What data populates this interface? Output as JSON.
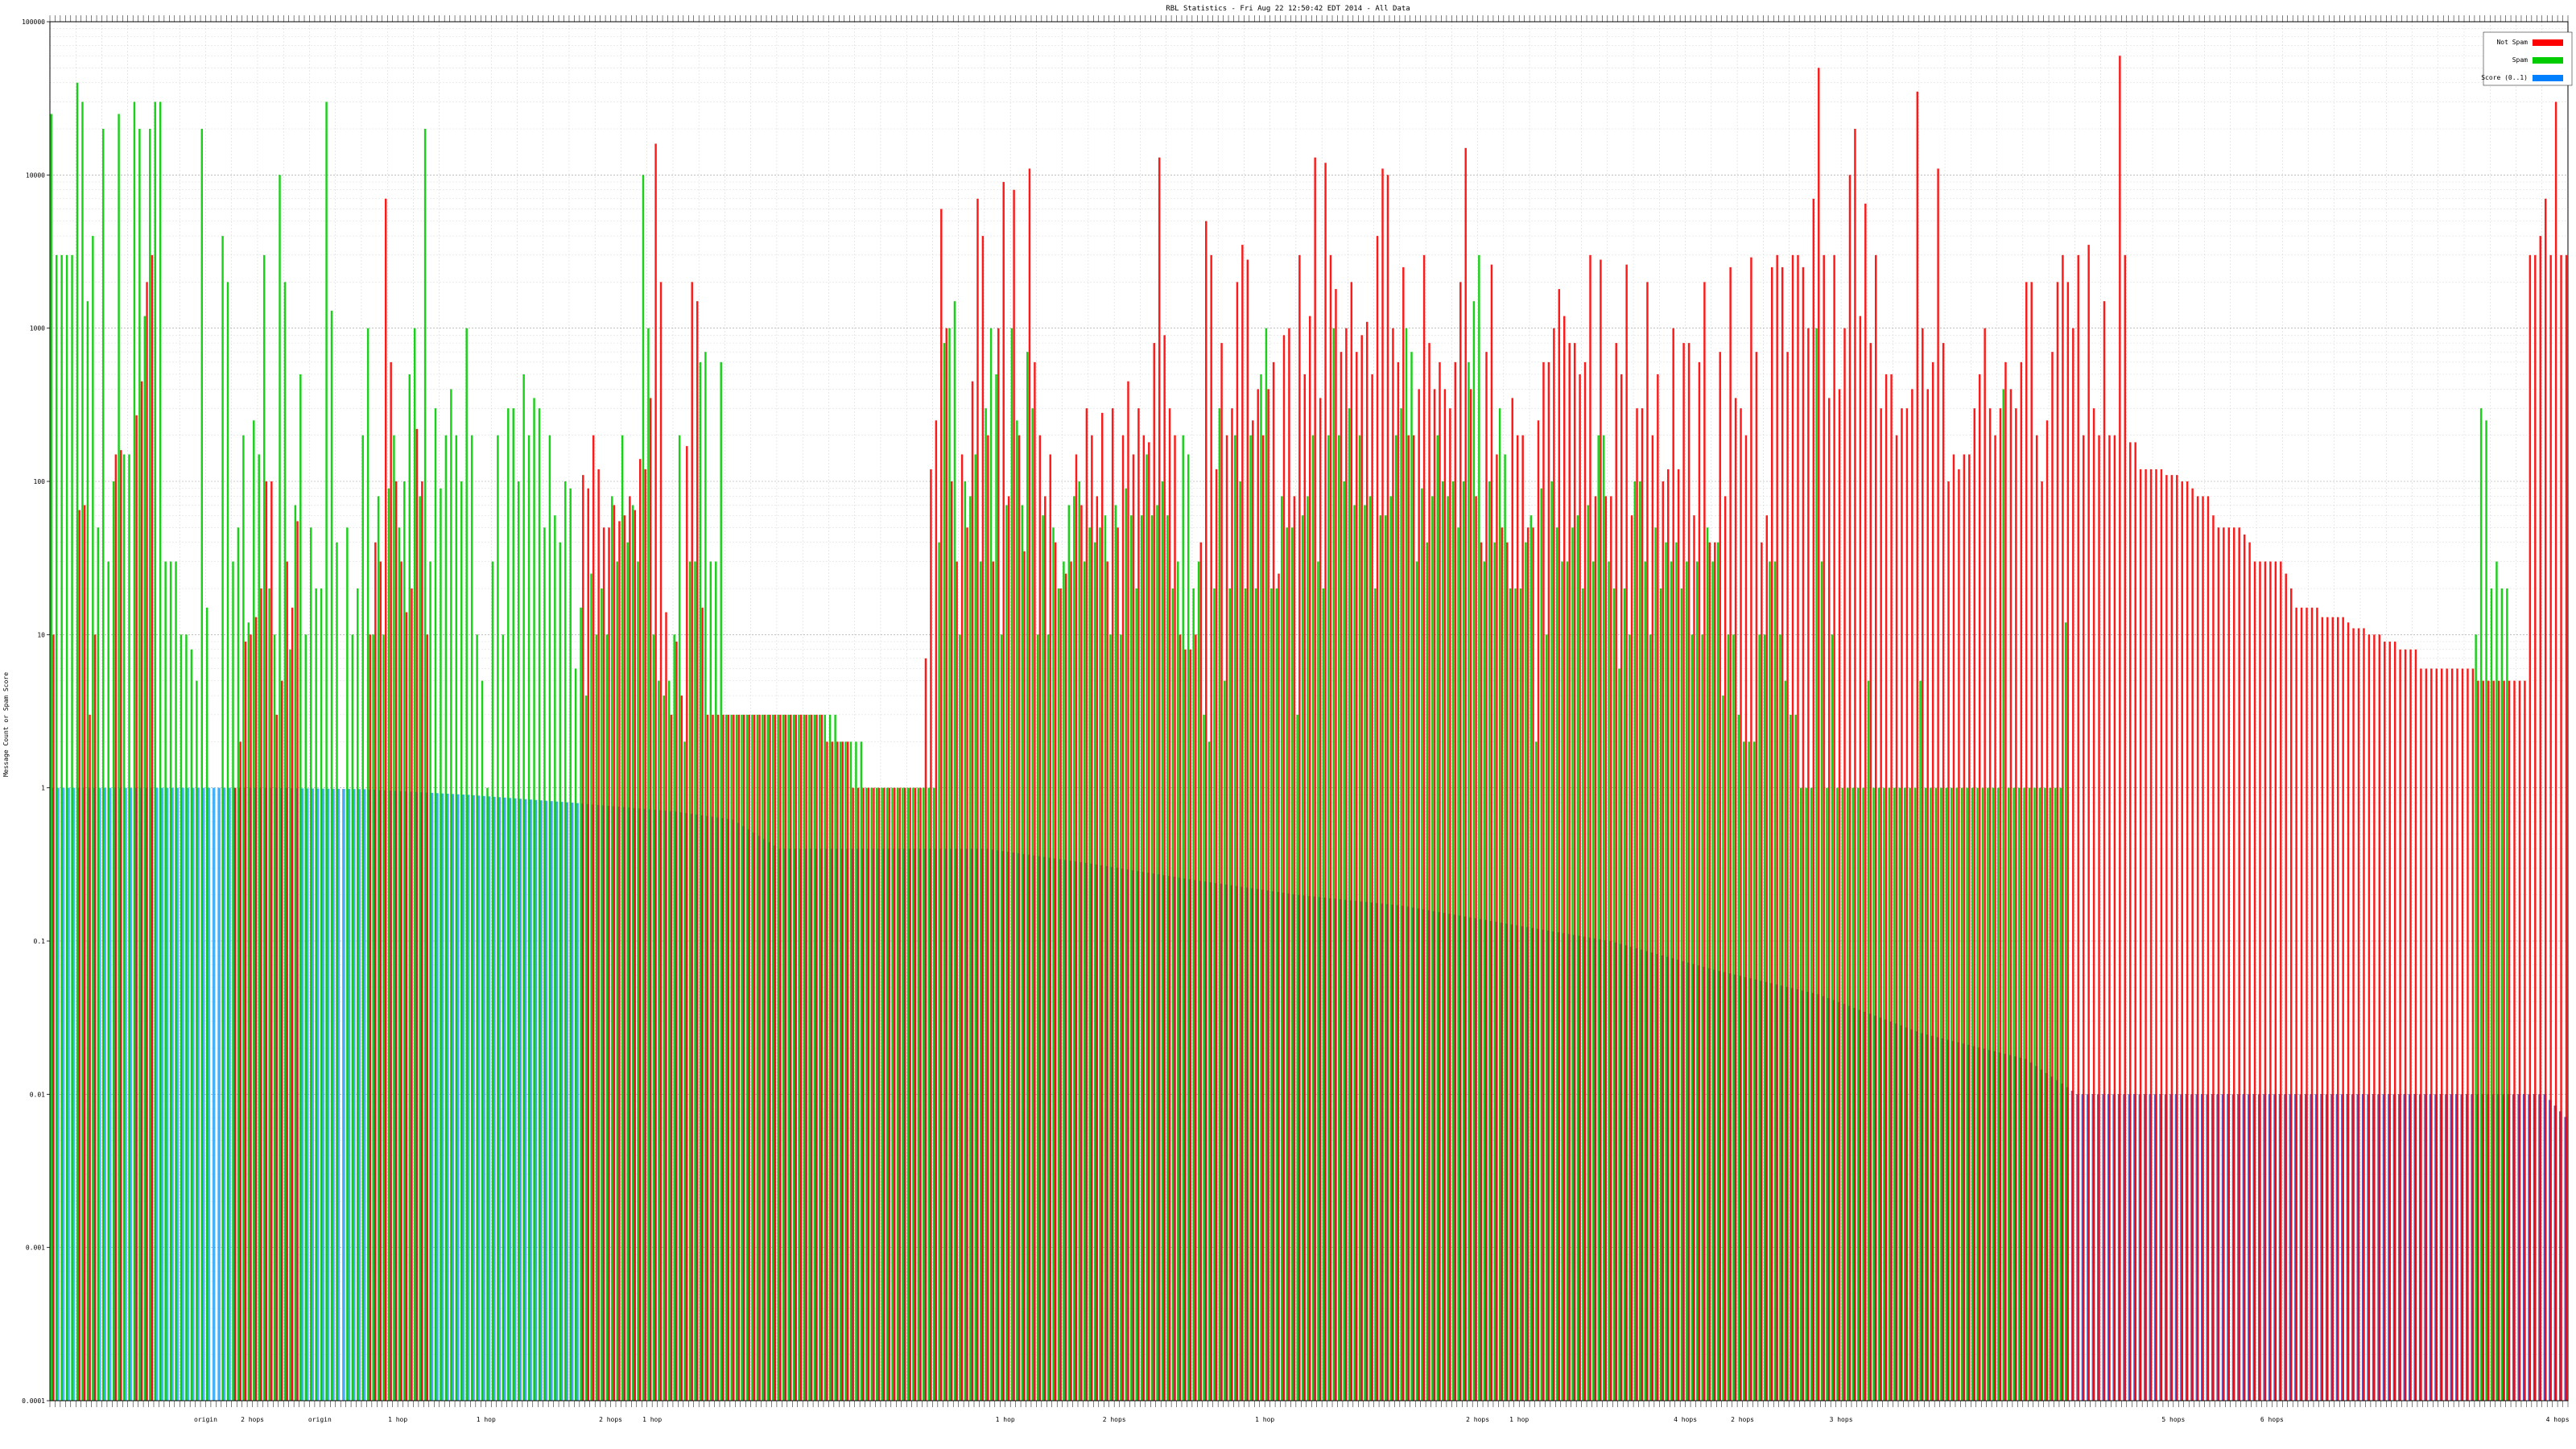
{
  "chart_data": {
    "type": "bar",
    "title": "RBL Statistics - Fri Aug 22 12:50:42 EDT 2014 - All Data",
    "ylabel": "Message Count or Spam Score",
    "y_scale": "log",
    "ylim": [
      0.0001,
      100000
    ],
    "y_ticks": [
      {
        "value": 100000,
        "label": "100000"
      },
      {
        "value": 10000,
        "label": "10000"
      },
      {
        "value": 1000,
        "label": "1000"
      },
      {
        "value": 100,
        "label": "100"
      },
      {
        "value": 10,
        "label": "10"
      },
      {
        "value": 1,
        "label": "1"
      },
      {
        "value": 0.1,
        "label": "0.1"
      },
      {
        "value": 0.01,
        "label": "0.01"
      },
      {
        "value": 0.001,
        "label": "0.001"
      },
      {
        "value": 0.0001,
        "label": "0.0001"
      }
    ],
    "grid": true,
    "legend_position": "top-right",
    "legend": [
      {
        "name": "Not Spam",
        "color": "#ff0000"
      },
      {
        "name": "Spam",
        "color": "#00cc00"
      },
      {
        "name": "Score (0..1)",
        "color": "#0080ff"
      }
    ],
    "group_labels": [
      {
        "x": 30,
        "text": "origin"
      },
      {
        "x": 39,
        "text": "2 hops"
      },
      {
        "x": 52,
        "text": "origin"
      },
      {
        "x": 67,
        "text": "1 hop"
      },
      {
        "x": 84,
        "text": "1 hop"
      },
      {
        "x": 108,
        "text": "2 hops"
      },
      {
        "x": 116,
        "text": "1 hop"
      },
      {
        "x": 184,
        "text": "1 hop"
      },
      {
        "x": 205,
        "text": "2 hops"
      },
      {
        "x": 234,
        "text": "1 hop"
      },
      {
        "x": 275,
        "text": "2 hops"
      },
      {
        "x": 283,
        "text": "1 hop"
      },
      {
        "x": 315,
        "text": "4 hops"
      },
      {
        "x": 326,
        "text": "2 hops"
      },
      {
        "x": 345,
        "text": "3 hops"
      },
      {
        "x": 409,
        "text": "5 hops"
      },
      {
        "x": 428,
        "text": "6 hops"
      },
      {
        "x": 483,
        "text": "4 hops"
      }
    ],
    "series": [
      {
        "name": "Not Spam",
        "values": [
          10,
          0,
          0,
          0,
          0,
          65,
          70,
          3,
          10,
          0,
          0,
          0,
          150,
          160,
          0,
          0,
          270,
          450,
          2000,
          3000,
          0,
          0,
          0,
          0,
          0,
          0,
          0,
          0,
          0,
          0,
          0,
          0,
          0,
          0,
          0,
          1,
          2,
          9,
          10,
          13,
          20,
          100,
          100,
          3,
          5,
          30,
          15,
          55,
          0,
          0,
          0,
          0,
          0,
          0,
          0,
          0,
          0,
          0,
          0,
          0,
          0,
          10,
          40,
          30,
          7000,
          600,
          100,
          30,
          14,
          20,
          220,
          100,
          10,
          0,
          0,
          0,
          0,
          0,
          0,
          0,
          0,
          0,
          0,
          0,
          0,
          0,
          0,
          0,
          0,
          0,
          0,
          0,
          0,
          0,
          0,
          0,
          0,
          0,
          0,
          0,
          0,
          0,
          110,
          90,
          200,
          120,
          50,
          50,
          70,
          55,
          60,
          80,
          65,
          140,
          120,
          350,
          16000,
          2000,
          14,
          3,
          9,
          4,
          170,
          2000,
          1500,
          15,
          3,
          3,
          3,
          3,
          3,
          3,
          3,
          3,
          3,
          3,
          3,
          3,
          3,
          3,
          3,
          3,
          3,
          3,
          3,
          3,
          3,
          3,
          3,
          2,
          2,
          2,
          2,
          2,
          1,
          1,
          1,
          1,
          1,
          1,
          1,
          1,
          1,
          1,
          1,
          1,
          1,
          1,
          7,
          120,
          250,
          6000,
          1000,
          100,
          30,
          150,
          50,
          450,
          7000,
          4000,
          200,
          30,
          1000,
          9000,
          80,
          8000,
          200,
          35,
          11000,
          600,
          200,
          80,
          150,
          40,
          20,
          25,
          30,
          150,
          70,
          300,
          200,
          80,
          280,
          30,
          300,
          50,
          200,
          450,
          150,
          300,
          200,
          180,
          800,
          13000,
          900,
          300,
          200,
          10,
          8,
          8,
          10,
          40,
          5000,
          3000,
          120,
          800,
          200,
          300,
          2000,
          3500,
          2800,
          250,
          400,
          200,
          400,
          600,
          25,
          900,
          1000,
          80,
          3000,
          500,
          1200,
          13000,
          350,
          12000,
          3000,
          1800,
          700,
          1000,
          2000,
          700,
          900,
          1100,
          500,
          4000,
          11000,
          10000,
          1000,
          600,
          2500,
          200,
          200,
          400,
          3000,
          800,
          400,
          600,
          400,
          300,
          600,
          2000,
          15000,
          400,
          80,
          40,
          700,
          2600,
          150,
          50,
          40,
          350,
          200,
          200,
          50,
          50,
          250,
          600,
          600,
          1000,
          1800,
          1200,
          800,
          800,
          500,
          600,
          3000,
          80,
          2800,
          80,
          80,
          800,
          500,
          2600,
          60,
          300,
          300,
          2000,
          200,
          500,
          100,
          120,
          1000,
          120,
          800,
          800,
          60,
          600,
          2000,
          40,
          40,
          700,
          80,
          2500,
          350,
          300,
          200,
          2900,
          700,
          40,
          60,
          2500,
          3000,
          2500,
          700,
          3000,
          3000,
          2500,
          1000,
          7000,
          50000,
          3000,
          350,
          3000,
          400,
          1000,
          10000,
          20000,
          1200,
          6500,
          800,
          3000,
          300,
          500,
          500,
          200,
          300,
          300,
          400,
          35000,
          1000,
          400,
          600,
          11000,
          800,
          100,
          150,
          120,
          150,
          150,
          300,
          500,
          1000,
          300,
          200,
          300,
          600,
          400,
          300,
          600,
          2000,
          2000,
          200,
          100,
          250,
          700,
          2000,
          3000,
          2000,
          1000,
          3000,
          200,
          3500,
          300,
          200,
          1500,
          200,
          200,
          60000,
          3000,
          180,
          180,
          120,
          120,
          120,
          120,
          120,
          110,
          110,
          110,
          100,
          100,
          90,
          80,
          80,
          80,
          60,
          50,
          50,
          50,
          50,
          50,
          45,
          40,
          30,
          30,
          30,
          30,
          30,
          30,
          25,
          20,
          15,
          15,
          15,
          15,
          15,
          13,
          13,
          13,
          13,
          13,
          12,
          11,
          11,
          11,
          10,
          10,
          10,
          9,
          9,
          9,
          8,
          8,
          8,
          8,
          6,
          6,
          6,
          6,
          6,
          6,
          6,
          6,
          6,
          6,
          6,
          5,
          5,
          5,
          5,
          5,
          5,
          5,
          5,
          5,
          5,
          3000,
          3000,
          4000,
          7000,
          3000,
          30000,
          3000,
          3000
        ]
      },
      {
        "name": "Spam",
        "values": [
          25000,
          3000,
          3000,
          3000,
          3000,
          40000,
          30000,
          1500,
          4000,
          50,
          20000,
          30,
          100,
          25000,
          150,
          150,
          30000,
          20000,
          1200,
          20000,
          30000,
          30000,
          30,
          30,
          30,
          10,
          10,
          8,
          5,
          20000,
          15,
          0,
          0,
          4000,
          2000,
          30,
          50,
          200,
          12,
          250,
          150,
          3000,
          20,
          10,
          10000,
          2000,
          8,
          70,
          500,
          10,
          50,
          20,
          20,
          30000,
          1300,
          40,
          0,
          50,
          10,
          20,
          200,
          1000,
          10,
          80,
          10,
          90,
          200,
          50,
          100,
          500,
          1000,
          80,
          20000,
          30,
          300,
          90,
          200,
          400,
          200,
          100,
          1000,
          200,
          10,
          5,
          1,
          30,
          200,
          10,
          300,
          300,
          100,
          500,
          200,
          350,
          300,
          50,
          200,
          60,
          40,
          100,
          90,
          6,
          15,
          4,
          25,
          10,
          20,
          10,
          80,
          30,
          200,
          40,
          70,
          30,
          10000,
          1000,
          10,
          5,
          4,
          5,
          10,
          200,
          2,
          30,
          30,
          600,
          700,
          30,
          30,
          600,
          3,
          3,
          3,
          3,
          3,
          3,
          3,
          3,
          3,
          3,
          3,
          3,
          3,
          3,
          3,
          3,
          3,
          3,
          3,
          3,
          3,
          3,
          2,
          2,
          2,
          2,
          2,
          1,
          1,
          1,
          1,
          1,
          1,
          1,
          1,
          1,
          1,
          1,
          1,
          1,
          1,
          40,
          800,
          1000,
          1500,
          10,
          100,
          80,
          150,
          30,
          300,
          1000,
          500,
          10,
          70,
          1000,
          250,
          70,
          700,
          300,
          10,
          60,
          10,
          50,
          20,
          30,
          70,
          80,
          100,
          30,
          50,
          40,
          50,
          60,
          10,
          70,
          10,
          90,
          60,
          20,
          60,
          150,
          60,
          70,
          100,
          60,
          20,
          30,
          200,
          150,
          20,
          30,
          3,
          2,
          20,
          300,
          5,
          20,
          200,
          100,
          20,
          200,
          20,
          500,
          1000,
          20,
          20,
          80,
          50,
          50,
          3,
          60,
          80,
          200,
          30,
          20,
          200,
          1000,
          200,
          100,
          300,
          70,
          200,
          70,
          80,
          20,
          60,
          60,
          80,
          200,
          300,
          1000,
          700,
          30,
          90,
          40,
          80,
          200,
          100,
          80,
          100,
          50,
          100,
          600,
          1500,
          3000,
          30,
          100,
          40,
          300,
          150,
          20,
          20,
          20,
          40,
          60,
          2,
          90,
          10,
          100,
          50,
          30,
          30,
          50,
          60,
          20,
          70,
          30,
          200,
          200,
          30,
          20,
          6,
          20,
          10,
          100,
          100,
          30,
          10,
          50,
          20,
          40,
          30,
          40,
          20,
          30,
          10,
          30,
          10,
          50,
          30,
          40,
          4,
          10,
          10,
          3,
          2,
          2,
          2,
          10,
          10,
          30,
          30,
          10,
          5,
          3,
          3,
          1,
          1,
          1,
          1000,
          30,
          1,
          10,
          1,
          1,
          1,
          1,
          1,
          1,
          5,
          1,
          1,
          1,
          1,
          1,
          1,
          1,
          1,
          1,
          5,
          1,
          1,
          1,
          1,
          1,
          1,
          1,
          1,
          1,
          1,
          1,
          1,
          1,
          1,
          1,
          400,
          1,
          1,
          1,
          1,
          1,
          1,
          1,
          1,
          1,
          1,
          1,
          12,
          0,
          0,
          0,
          0,
          0,
          0,
          0,
          0,
          0,
          0,
          0,
          0,
          0,
          0,
          0,
          0,
          0,
          0,
          0,
          0,
          0,
          0,
          0,
          0,
          0,
          0,
          0,
          0,
          0,
          0,
          0,
          0,
          0,
          0,
          0,
          0,
          0,
          0,
          0,
          0,
          0,
          0,
          0,
          0,
          0,
          0,
          0,
          0,
          0,
          0,
          0,
          0,
          0,
          0,
          0,
          0,
          0,
          0,
          0,
          0,
          0,
          0,
          0,
          0,
          0,
          0,
          0,
          0,
          0,
          0,
          0,
          0,
          0,
          0,
          0,
          0,
          0,
          0,
          10,
          300,
          250,
          20,
          30,
          20,
          20
        ]
      }
    ],
    "score_profile": [
      [
        0,
        1.0
      ],
      [
        40,
        1.0
      ],
      [
        60,
        0.98
      ],
      [
        80,
        0.9
      ],
      [
        100,
        0.8
      ],
      [
        120,
        0.7
      ],
      [
        131,
        0.62
      ],
      [
        140,
        0.4
      ],
      [
        160,
        0.4
      ],
      [
        180,
        0.4
      ],
      [
        200,
        0.32
      ],
      [
        220,
        0.25
      ],
      [
        240,
        0.2
      ],
      [
        260,
        0.17
      ],
      [
        280,
        0.13
      ],
      [
        300,
        0.1
      ],
      [
        320,
        0.065
      ],
      [
        340,
        0.045
      ],
      [
        360,
        0.025
      ],
      [
        380,
        0.017
      ],
      [
        390,
        0.01
      ],
      [
        480,
        0.01
      ],
      [
        486,
        0.006
      ],
      [
        487,
        0.003
      ]
    ],
    "colors": {
      "not_spam": "#ff0000",
      "spam": "#00cc00",
      "score_light": "#22aaff",
      "score_dark": "#4433aa",
      "grid": "#c8c8c8"
    }
  }
}
